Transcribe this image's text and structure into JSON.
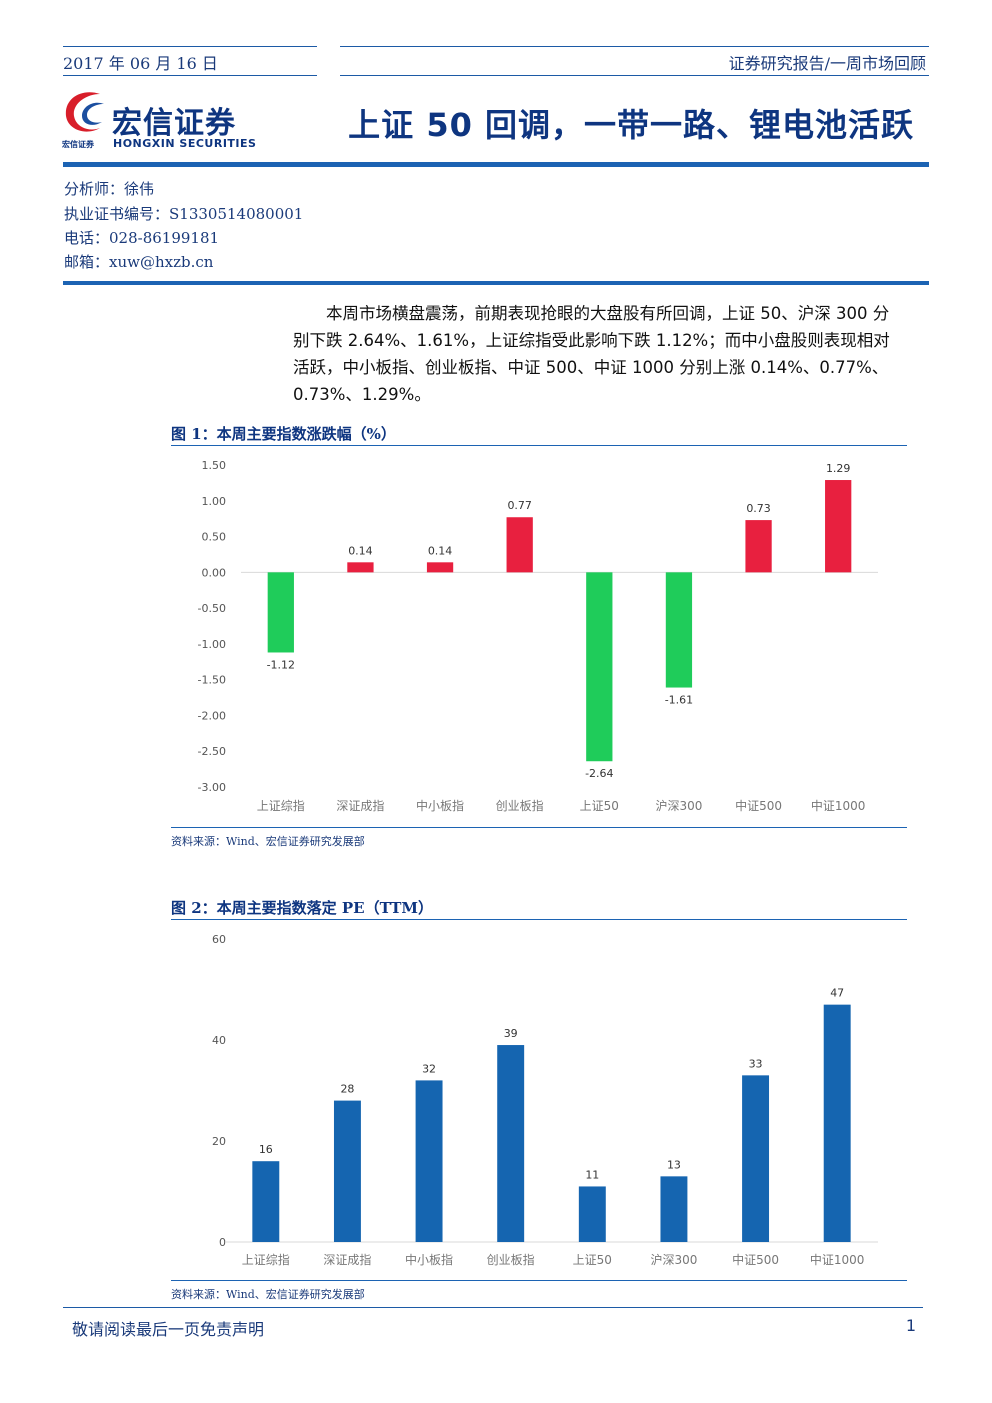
{
  "header": {
    "date": "2017 年 06 月 16 日",
    "report_type": "证券研究报告/一周市场回顾",
    "logo_cn": "宏信证券",
    "logo_en": "HONGXIN SECURITIES",
    "logo_small": "宏信证券",
    "headline": "上证 50 回调，一带一路、锂电池活跃"
  },
  "analyst": {
    "name": "分析师：徐伟",
    "cert": "执业证书编号：S1330514080001",
    "phone": "电话：028-86199181",
    "email": "邮箱：xuw@hxzb.cn"
  },
  "summary": "本周市场横盘震荡，前期表现抢眼的大盘股有所回调，上证 50、沪深 300 分别下跌 2.64%、1.61%，上证综指受此影响下跌 1.12%；而中小盘股则表现相对活跃，中小板指、创业板指、中证 500、中证 1000 分别上涨 0.14%、0.77%、0.73%、1.29%。",
  "figure1": {
    "title": "图 1：本周主要指数涨跌幅（%）",
    "source": "资料来源：Wind、宏信证券研究发展部"
  },
  "figure2": {
    "title": "图 2：本周主要指数落定 PE（TTM）",
    "source": "资料来源：Wind、宏信证券研究发展部"
  },
  "chart_data": [
    {
      "type": "bar",
      "title": "本周主要指数涨跌幅（%）",
      "categories": [
        "上证综指",
        "深证成指",
        "中小板指",
        "创业板指",
        "上证50",
        "沪深300",
        "中证500",
        "中证1000"
      ],
      "values": [
        -1.12,
        0.14,
        0.14,
        0.77,
        -2.64,
        -1.61,
        0.73,
        1.29
      ],
      "labels": [
        "-1.12",
        "0.14",
        "0.14",
        "0.77",
        "-2.64",
        "-1.61",
        "0.73",
        "1.29"
      ],
      "ylim": [
        -3.0,
        1.5
      ],
      "yticks": [
        "1.50",
        "1.00",
        "0.50",
        "0.00",
        "-0.50",
        "-1.00",
        "-1.50",
        "-2.00",
        "-2.50",
        "-3.00"
      ],
      "ytick_values": [
        1.5,
        1.0,
        0.5,
        0.0,
        -0.5,
        -1.0,
        -1.5,
        -2.0,
        -2.5,
        -3.0
      ],
      "colors": {
        "positive": "#e8203f",
        "negative": "#1fcc5a"
      },
      "grid": false
    },
    {
      "type": "bar",
      "title": "本周主要指数落定 PE（TTM）",
      "categories": [
        "上证综指",
        "深证成指",
        "中小板指",
        "创业板指",
        "上证50",
        "沪深300",
        "中证500",
        "中证1000"
      ],
      "values": [
        16,
        28,
        32,
        39,
        11,
        13,
        33,
        47
      ],
      "ylim": [
        0,
        60
      ],
      "yticks": [
        "60",
        "40",
        "20",
        "0"
      ],
      "ytick_values": [
        60,
        40,
        20,
        0
      ],
      "colors": {
        "bar": "#1565b0"
      },
      "grid": false
    }
  ],
  "footer": {
    "disclaimer": "敬请阅读最后一页免责声明",
    "page": "1"
  }
}
